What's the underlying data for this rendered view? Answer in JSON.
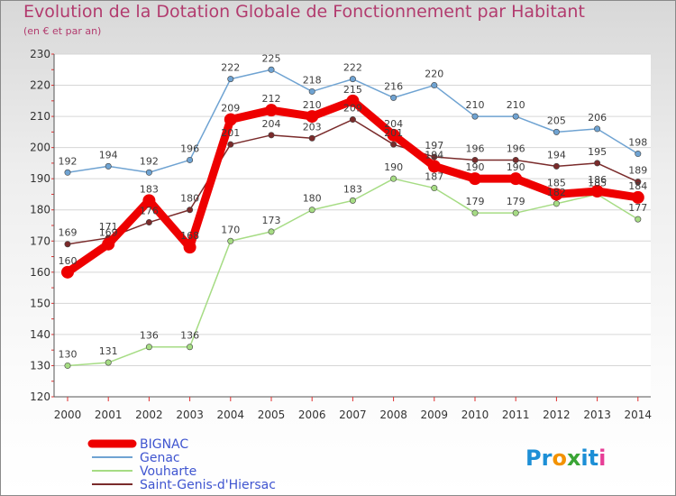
{
  "title": "Evolution de la Dotation Globale de Fonctionnement par Habitant",
  "subtitle": "(en € et par an)",
  "logo": {
    "text": "Proxiti",
    "letters": [
      "P",
      "r",
      "o",
      "x",
      "i",
      "t",
      "i"
    ],
    "colors": [
      "#1d8fd6",
      "#1d8fd6",
      "#f39200",
      "#3aa535",
      "#1d8fd6",
      "#1d8fd6",
      "#e73e97"
    ]
  },
  "chart_data": {
    "type": "line",
    "title": "Evolution de la Dotation Globale de Fonctionnement par Habitant",
    "subtitle": "(en € et par an)",
    "xlabel": "",
    "ylabel": "",
    "ylim": [
      120,
      230
    ],
    "yticks": [
      120,
      130,
      140,
      150,
      160,
      170,
      180,
      190,
      200,
      210,
      220,
      230
    ],
    "categories": [
      "2000",
      "2001",
      "2002",
      "2003",
      "2004",
      "2005",
      "2006",
      "2007",
      "2008",
      "2009",
      "2010",
      "2011",
      "2012",
      "2013",
      "2014"
    ],
    "grid": "horizontal",
    "legend_position": "bottom-left",
    "series": [
      {
        "name": "Genac",
        "color": "#6fa3d2",
        "width": "thin",
        "values": [
          192,
          194,
          192,
          196,
          222,
          225,
          218,
          222,
          216,
          220,
          210,
          210,
          205,
          206,
          198
        ]
      },
      {
        "name": "Vouharte",
        "color": "#a6dc84",
        "width": "thin",
        "values": [
          130,
          131,
          136,
          136,
          170,
          173,
          180,
          183,
          190,
          187,
          179,
          179,
          182,
          185,
          177
        ]
      },
      {
        "name": "Saint-Genis-d'Hiersac",
        "color": "#7a2b2b",
        "width": "thin",
        "values": [
          169,
          171,
          176,
          180,
          201,
          204,
          203,
          209,
          201,
          197,
          196,
          196,
          194,
          195,
          189
        ]
      },
      {
        "name": "BIGNAC",
        "color": "#ee0000",
        "width": "thick",
        "values": [
          160,
          169,
          183,
          168,
          209,
          212,
          210,
          215,
          204,
          194,
          190,
          190,
          185,
          186,
          184
        ]
      }
    ]
  }
}
